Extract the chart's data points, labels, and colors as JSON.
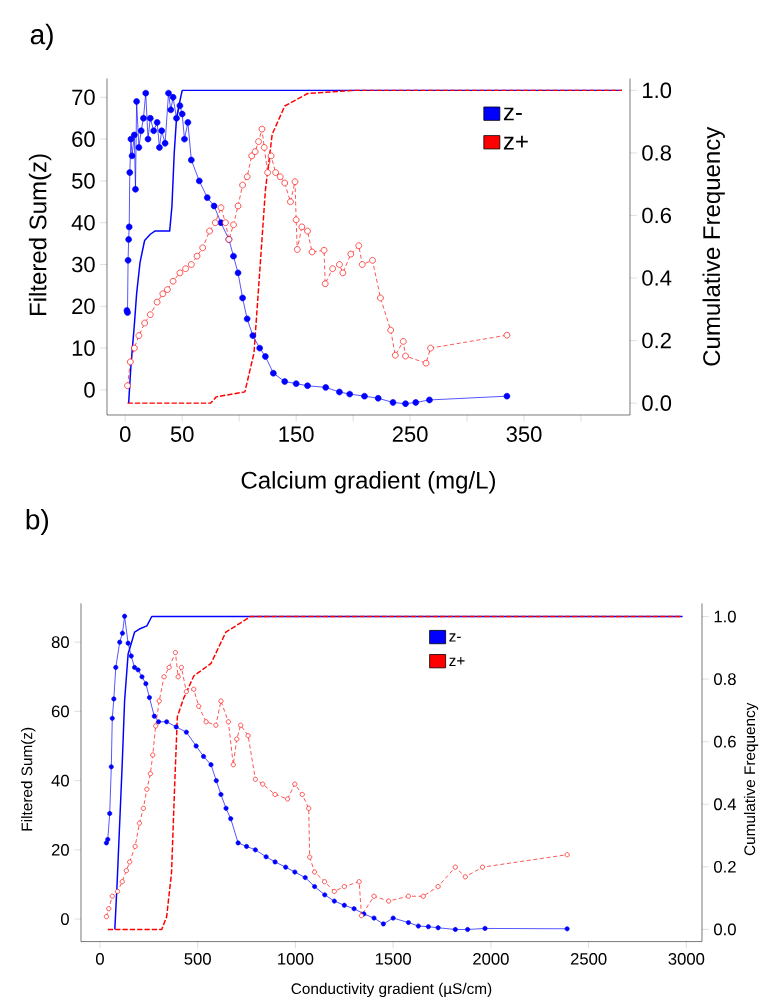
{
  "chart_data": [
    {
      "type": "line",
      "title": "a)",
      "xlabel": "Calcium  gradient (mg/L)",
      "ylabel": "Filtered Sum(z)",
      "y2label": "Cumulative Frequency",
      "xlim": [
        -16,
        443
      ],
      "xticks": [
        0,
        50,
        {
          "value": 100,
          "label": null
        },
        150,
        {
          "value": 200,
          "label": null
        },
        250,
        {
          "value": 300,
          "label": null
        },
        350,
        {
          "value": 400,
          "label": null
        }
      ],
      "ylim": [
        -6,
        74.5
      ],
      "yticks": [
        0,
        10,
        20,
        30,
        40,
        50,
        60,
        70
      ],
      "y2lim": [
        -0.038,
        1.038
      ],
      "y2ticks": [
        {
          "value": 0,
          "label": "0.0"
        },
        {
          "value": 0.2,
          "label": "0.2"
        },
        {
          "value": 0.4,
          "label": "0.4"
        },
        {
          "value": 0.6,
          "label": "0.6"
        },
        {
          "value": 0.8,
          "label": "0.8"
        },
        {
          "value": 1,
          "label": "1.0"
        }
      ],
      "legend": "top right",
      "grid": false,
      "series": [
        {
          "name": "z-",
          "color": "#0000ff",
          "marker": "circle",
          "line_style": "solid",
          "x": [
            1.5,
            2,
            2.5,
            3,
            3.5,
            4,
            5,
            6,
            8,
            9,
            10,
            12,
            14,
            16,
            18,
            20,
            22,
            25,
            28,
            30,
            32,
            35,
            38,
            40,
            42,
            45,
            48,
            50,
            52,
            55,
            58,
            65,
            72,
            78,
            84,
            91,
            95,
            99,
            103,
            107,
            112,
            118,
            123,
            130,
            140,
            150,
            160,
            176,
            188,
            197,
            210,
            222,
            235,
            246,
            255,
            267,
            335
          ],
          "values": [
            19,
            18.5,
            31,
            36,
            39,
            52,
            60,
            56,
            61,
            48,
            69,
            58,
            62,
            65,
            71,
            60,
            65,
            62,
            64,
            58,
            62,
            59,
            71,
            67,
            70,
            65,
            68,
            66,
            60,
            64,
            55,
            50,
            46,
            44,
            40,
            36,
            32,
            28,
            22,
            17,
            13,
            10,
            8,
            4,
            2,
            1.5,
            1,
            0.6,
            -0.5,
            -1,
            -1.5,
            -2,
            -3,
            -3.3,
            -3,
            -2.4,
            -1.5
          ]
        },
        {
          "name": "z+",
          "color": "#ff0000",
          "marker": "circle",
          "line_style": "dotted",
          "x": [
            2,
            4.5,
            8,
            12,
            17,
            22,
            28,
            33,
            37,
            42,
            48,
            53,
            58,
            63,
            68,
            74,
            79,
            84,
            88,
            91,
            95,
            99,
            103,
            107,
            111,
            114,
            117,
            120,
            122,
            125,
            128,
            132,
            136,
            140,
            145,
            149,
            150,
            151,
            155,
            160,
            164,
            174.5,
            175.5,
            182,
            188,
            191,
            198,
            205,
            208,
            217,
            224,
            233,
            237,
            244,
            246,
            264,
            268,
            335
          ],
          "values": [
            1,
            6.7,
            10,
            13,
            16,
            18,
            21,
            23,
            24,
            26,
            28,
            29,
            30,
            32,
            34,
            38,
            40,
            43.6,
            40,
            36,
            39.5,
            44,
            49,
            51,
            56,
            57,
            59.4,
            62.4,
            58,
            52,
            56,
            52,
            51,
            49.5,
            45,
            49.8,
            40.7,
            33.6,
            39,
            38,
            33,
            33.4,
            25.4,
            29,
            30,
            28,
            32.5,
            34.5,
            30,
            31,
            22,
            14.3,
            8.3,
            11.6,
            8.1,
            6.4,
            10,
            13.1
          ]
        },
        {
          "color": "#0000ff",
          "marker": "none",
          "line_style": "solid",
          "axis": "y2",
          "x": [
            3,
            5,
            8,
            10,
            13,
            17,
            22,
            26,
            39,
            41,
            43,
            45,
            47,
            50,
            436
          ],
          "values": [
            0,
            0.12,
            0.25,
            0.35,
            0.45,
            0.52,
            0.54,
            0.55,
            0.55,
            0.63,
            0.8,
            0.91,
            0.95,
            1.0,
            1.0
          ]
        },
        {
          "color": "#ff0000",
          "marker": "none",
          "line_style": "dashed",
          "axis": "y2",
          "x": [
            2,
            75,
            80,
            105,
            113,
            119,
            123,
            129,
            140,
            160,
            201,
            436
          ],
          "values": [
            0,
            0,
            0.02,
            0.036,
            0.16,
            0.47,
            0.68,
            0.86,
            0.95,
            0.99,
            1.0,
            1.0
          ]
        }
      ]
    },
    {
      "type": "line",
      "title": "b)",
      "xlabel": "Conductivity gradient (µS/cm)",
      "ylabel": "Filtered Sum(z)",
      "y2label": "Cumulative Frequency",
      "xlim": [
        -97,
        3080
      ],
      "xticks": [
        0,
        500,
        1000,
        1500,
        2000,
        2500,
        3000
      ],
      "ylim": [
        -6.5,
        91.2
      ],
      "yticks": [
        0,
        20,
        40,
        60,
        80
      ],
      "y2lim": [
        -0.039,
        1.042
      ],
      "y2ticks": [
        {
          "value": 0,
          "label": "0.0"
        },
        {
          "value": 0.2,
          "label": "0.2"
        },
        {
          "value": 0.4,
          "label": "0.4"
        },
        {
          "value": 0.6,
          "label": "0.6"
        },
        {
          "value": 0.8,
          "label": "0.8"
        },
        {
          "value": 1,
          "label": "1.0"
        }
      ],
      "legend": "top right",
      "grid": false,
      "series": [
        {
          "name": "z-",
          "color": "#0000ff",
          "marker": "circle",
          "line_style": "solid",
          "x": [
            33,
            40,
            50,
            58,
            63,
            71,
            81,
            101,
            115,
            126,
            144,
            160,
            177,
            195,
            215,
            235,
            253,
            278,
            300,
            341,
            390,
            442,
            492,
            530,
            568,
            595,
            619,
            645,
            669,
            707,
            750,
            795,
            850,
            896,
            950,
            997,
            1050,
            1098,
            1150,
            1199,
            1250,
            1300,
            1350,
            1402,
            1450,
            1500,
            1578,
            1629,
            1680,
            1730,
            1818,
            1881,
            1970,
            2390
          ],
          "values": [
            22,
            23,
            30.5,
            44,
            58,
            63.6,
            72.7,
            80,
            82.6,
            87.5,
            79.7,
            76,
            72.7,
            72,
            70,
            68,
            64,
            58.6,
            57,
            57,
            55.5,
            54,
            50,
            47,
            44.6,
            40,
            36,
            32,
            29,
            22,
            21,
            20,
            18,
            16.5,
            15,
            13.6,
            12,
            9.4,
            7,
            5.2,
            4,
            3,
            1.5,
            0.3,
            -1.4,
            0.3,
            -1,
            -2,
            -2.2,
            -2.5,
            -3,
            -3,
            -2.7,
            -2.8
          ]
        },
        {
          "name": "z+",
          "color": "#ff0000",
          "marker": "circle",
          "line_style": "dotted",
          "x": [
            33,
            45,
            63,
            90,
            114,
            135,
            152,
            180,
            202,
            222,
            240,
            258,
            270,
            285,
            303,
            328,
            354,
            386,
            400,
            417,
            442,
            480,
            505,
            543,
            593,
            619,
            657,
            682,
            700,
            720,
            758,
            795,
            833,
            896,
            960,
            997,
            1035,
            1068,
            1073,
            1098,
            1149,
            1199,
            1250,
            1326,
            1338,
            1402,
            1477,
            1578,
            1654,
            1730,
            1818,
            1869,
            1957,
            2390
          ],
          "values": [
            0.7,
            3,
            6.6,
            8,
            10.8,
            14,
            16.5,
            21,
            27.7,
            32,
            37.5,
            42,
            47.4,
            55.8,
            63,
            70,
            72.7,
            77,
            70,
            72.7,
            65.7,
            66.4,
            61.5,
            57,
            56,
            63,
            57,
            44.6,
            52,
            56,
            53,
            40.4,
            39,
            36,
            34.7,
            39,
            36,
            32,
            17.9,
            13.6,
            10.8,
            8,
            9.4,
            10.8,
            1,
            6.6,
            5.2,
            6.6,
            6.6,
            9.4,
            15,
            12.2,
            15,
            18.6
          ]
        },
        {
          "color": "#0000ff",
          "marker": "none",
          "line_style": "solid",
          "axis": "y2",
          "x": [
            76,
            88,
            114,
            126,
            144,
            177,
            202,
            240,
            265,
            2980
          ],
          "values": [
            0,
            0.15,
            0.53,
            0.73,
            0.88,
            0.95,
            0.96,
            0.97,
            1.0,
            1.0
          ]
        },
        {
          "color": "#ff0000",
          "marker": "none",
          "line_style": "dashed",
          "axis": "y2",
          "x": [
            40,
            316,
            341,
            366,
            384,
            396,
            429,
            480,
            568,
            644,
            720,
            770,
            2980
          ],
          "values": [
            0,
            0,
            0.04,
            0.18,
            0.49,
            0.68,
            0.74,
            0.81,
            0.85,
            0.95,
            0.98,
            1.0,
            1.0
          ]
        }
      ]
    }
  ]
}
